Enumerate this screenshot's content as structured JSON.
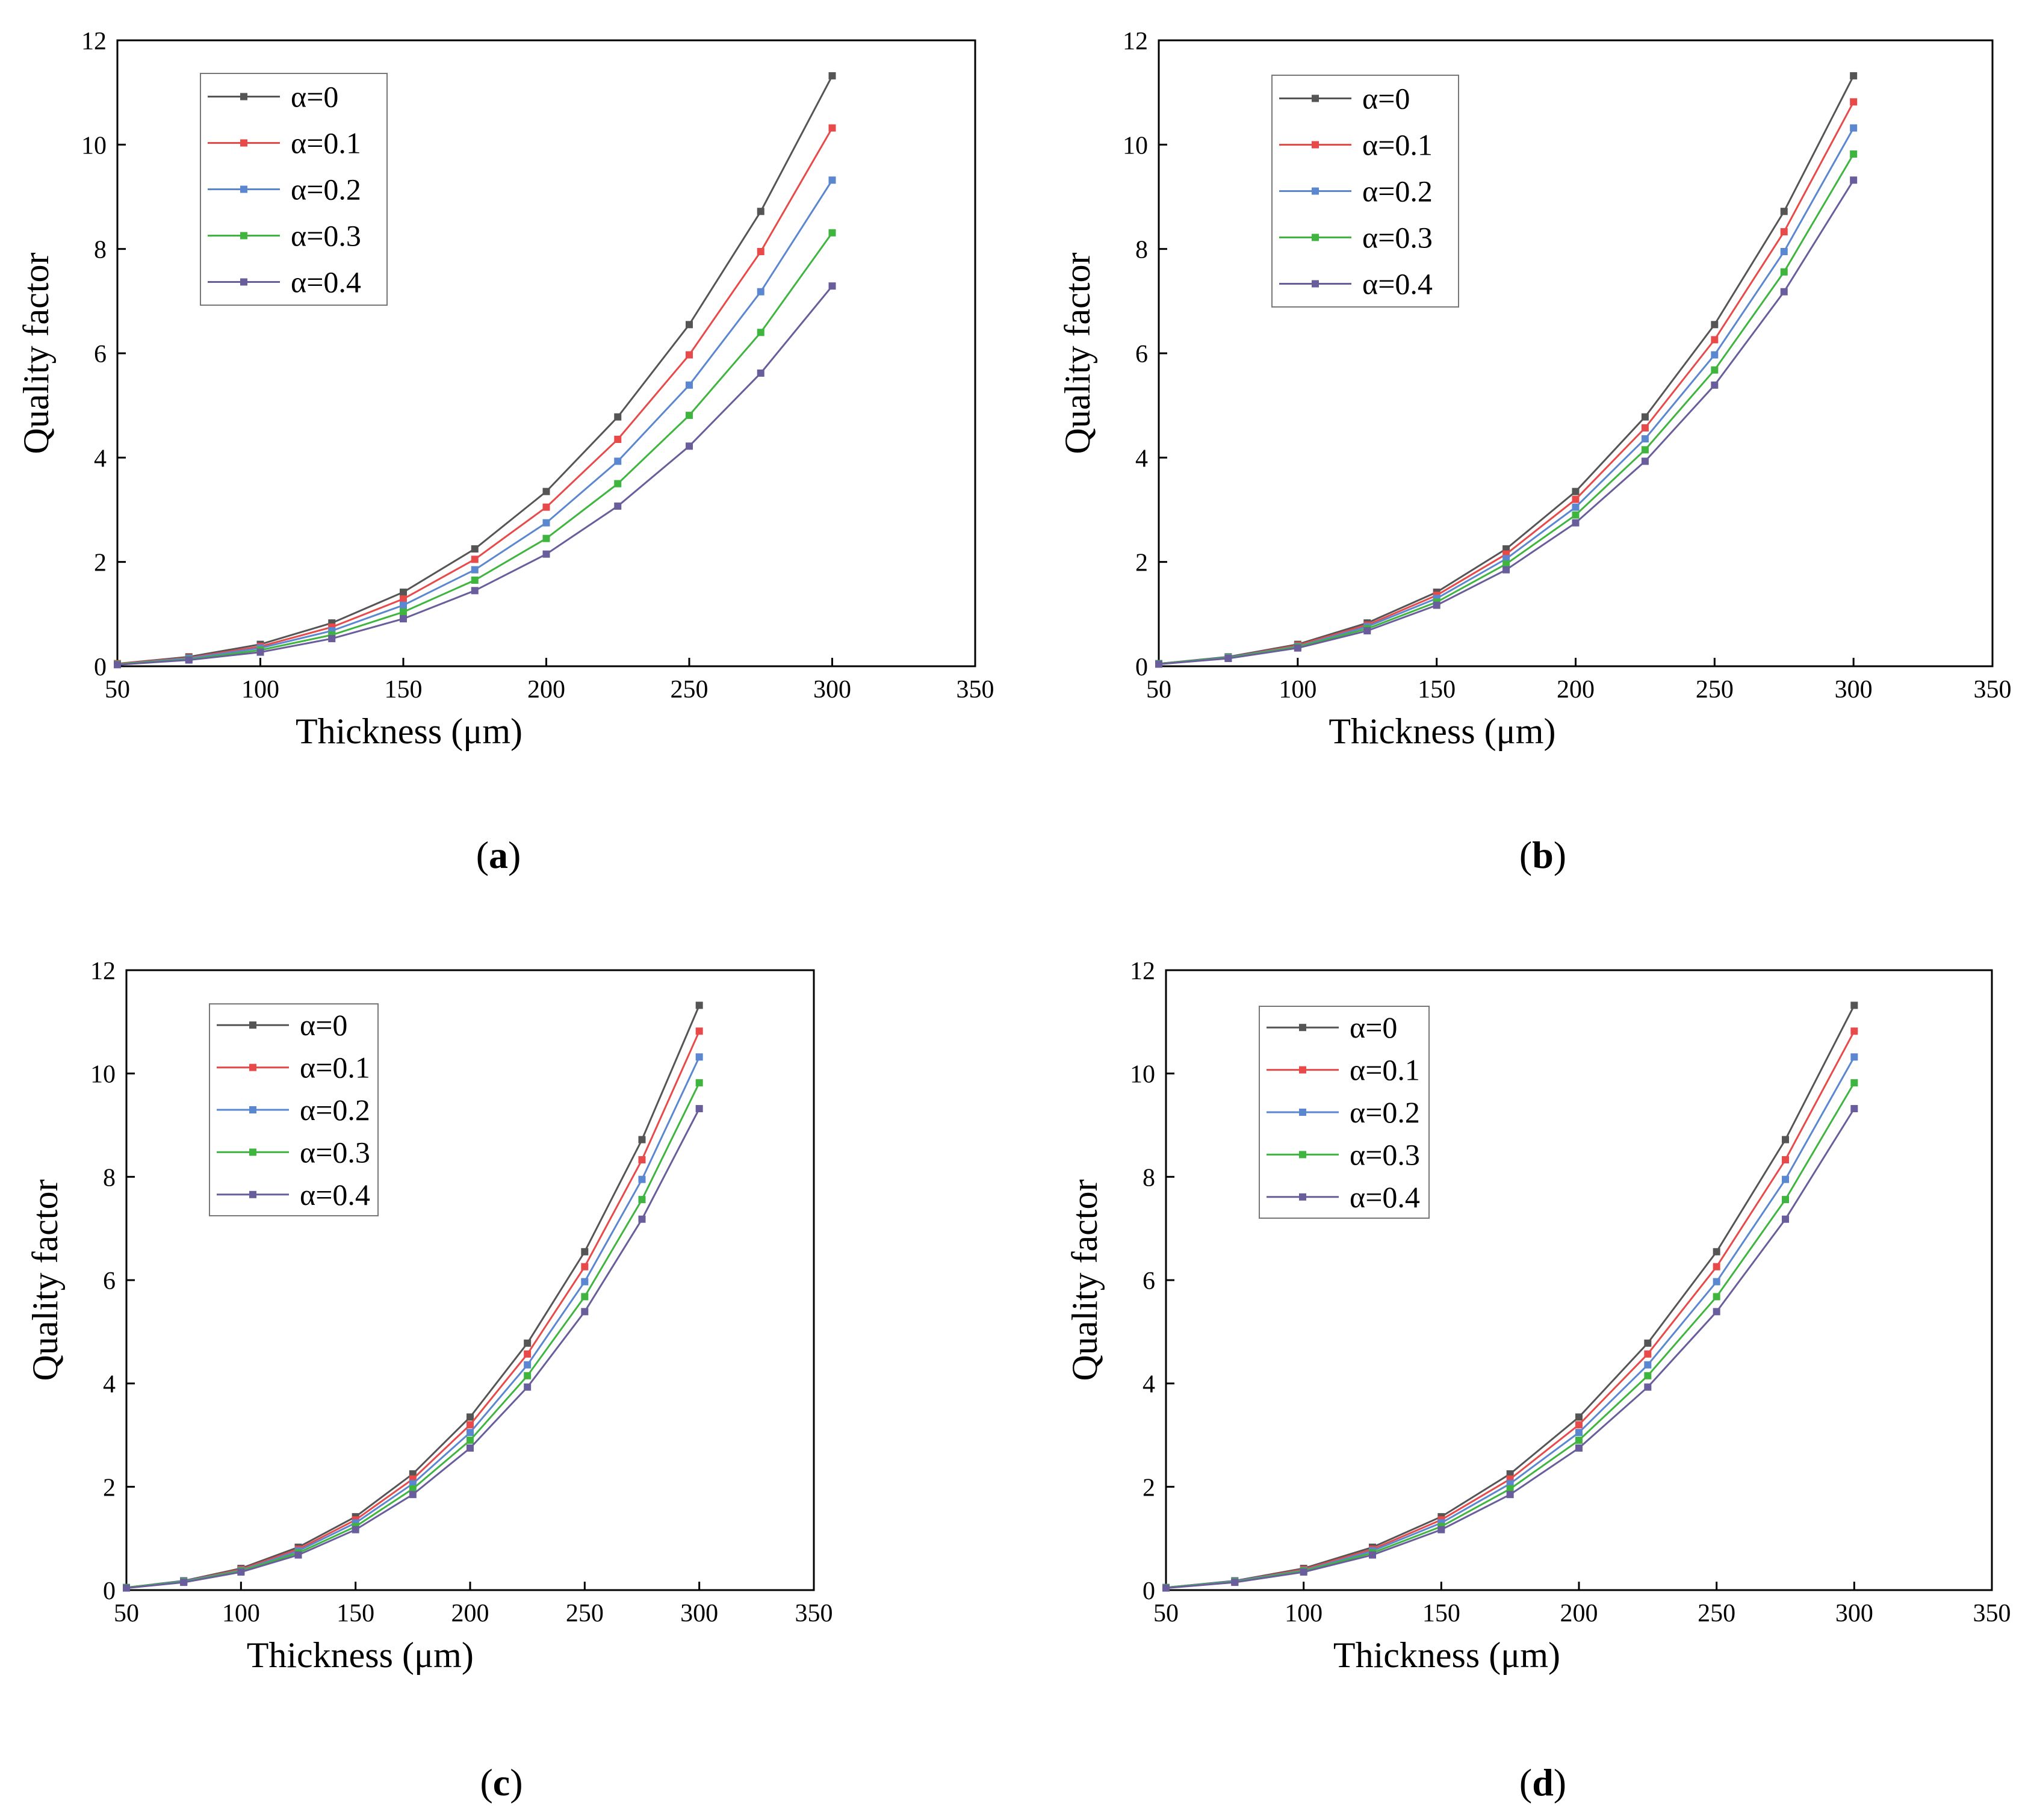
{
  "chart_data": [
    {
      "type": "line",
      "panel": "(a)",
      "caption_letter": "a",
      "xlabel": "Thickness (μm)",
      "ylabel": "Quality factor",
      "xlim": [
        50,
        350
      ],
      "ylim": [
        0,
        12
      ],
      "xticks": [
        50,
        100,
        150,
        200,
        250,
        300,
        350
      ],
      "yticks": [
        0,
        2,
        4,
        6,
        8,
        10,
        12
      ],
      "grid": false,
      "legend_position": "top-left",
      "x": [
        50,
        75,
        100,
        125,
        150,
        175,
        200,
        225,
        250,
        275,
        300
      ],
      "series": [
        {
          "name": "α=0",
          "color": "#555555",
          "values": [
            0.05,
            0.18,
            0.42,
            0.83,
            1.42,
            2.25,
            3.35,
            4.78,
            6.55,
            8.72,
            11.32
          ]
        },
        {
          "name": "α=0.1",
          "color": "#e84a4a",
          "values": [
            0.05,
            0.16,
            0.38,
            0.75,
            1.29,
            2.05,
            3.05,
            4.35,
            5.97,
            7.95,
            10.32
          ]
        },
        {
          "name": "α=0.2",
          "color": "#5b86d0",
          "values": [
            0.04,
            0.15,
            0.35,
            0.68,
            1.17,
            1.85,
            2.75,
            3.93,
            5.39,
            7.18,
            9.32
          ]
        },
        {
          "name": "α=0.3",
          "color": "#3fb53f",
          "values": [
            0.04,
            0.13,
            0.31,
            0.6,
            1.04,
            1.65,
            2.45,
            3.5,
            4.81,
            6.4,
            8.31
          ]
        },
        {
          "name": "α=0.4",
          "color": "#6a5d9c",
          "values": [
            0.03,
            0.12,
            0.27,
            0.53,
            0.91,
            1.45,
            2.15,
            3.07,
            4.22,
            5.62,
            7.29
          ]
        }
      ]
    },
    {
      "type": "line",
      "panel": "(b)",
      "caption_letter": "b",
      "xlabel": "Thickness (μm)",
      "ylabel": "Quality factor",
      "xlim": [
        50,
        350
      ],
      "ylim": [
        0,
        12
      ],
      "xticks": [
        50,
        100,
        150,
        200,
        250,
        300,
        350
      ],
      "yticks": [
        0,
        2,
        4,
        6,
        8,
        10,
        12
      ],
      "grid": false,
      "legend_position": "top-left",
      "x": [
        50,
        75,
        100,
        125,
        150,
        175,
        200,
        225,
        250,
        275,
        300
      ],
      "series": [
        {
          "name": "α=0",
          "color": "#555555",
          "values": [
            0.05,
            0.18,
            0.42,
            0.83,
            1.42,
            2.25,
            3.35,
            4.78,
            6.55,
            8.72,
            11.32
          ]
        },
        {
          "name": "α=0.1",
          "color": "#e84a4a",
          "values": [
            0.05,
            0.17,
            0.4,
            0.79,
            1.36,
            2.15,
            3.2,
            4.57,
            6.26,
            8.33,
            10.82
          ]
        },
        {
          "name": "α=0.2",
          "color": "#5b86d0",
          "values": [
            0.05,
            0.17,
            0.38,
            0.76,
            1.3,
            2.06,
            3.05,
            4.36,
            5.97,
            7.95,
            10.32
          ]
        },
        {
          "name": "α=0.3",
          "color": "#3fb53f",
          "values": [
            0.05,
            0.16,
            0.37,
            0.72,
            1.23,
            1.96,
            2.9,
            4.15,
            5.68,
            7.56,
            9.82
          ]
        },
        {
          "name": "α=0.4",
          "color": "#6a5d9c",
          "values": [
            0.04,
            0.15,
            0.35,
            0.68,
            1.17,
            1.85,
            2.75,
            3.93,
            5.39,
            7.18,
            9.32
          ]
        }
      ]
    },
    {
      "type": "line",
      "panel": "(c)",
      "caption_letter": "c",
      "xlabel": "Thickness (μm)",
      "ylabel": "Quality factor",
      "xlim": [
        50,
        350
      ],
      "ylim": [
        0,
        12
      ],
      "xticks": [
        50,
        100,
        150,
        200,
        250,
        300,
        350
      ],
      "yticks": [
        0,
        2,
        4,
        6,
        8,
        10,
        12
      ],
      "grid": false,
      "legend_position": "top-left",
      "x": [
        50,
        75,
        100,
        125,
        150,
        175,
        200,
        225,
        250,
        275,
        300
      ],
      "series": [
        {
          "name": "α=0",
          "color": "#555555",
          "values": [
            0.05,
            0.18,
            0.42,
            0.83,
            1.42,
            2.25,
            3.35,
            4.78,
            6.55,
            8.72,
            11.32
          ]
        },
        {
          "name": "α=0.1",
          "color": "#e84a4a",
          "values": [
            0.05,
            0.17,
            0.4,
            0.79,
            1.36,
            2.15,
            3.2,
            4.57,
            6.26,
            8.33,
            10.82
          ]
        },
        {
          "name": "α=0.2",
          "color": "#5b86d0",
          "values": [
            0.05,
            0.17,
            0.38,
            0.76,
            1.3,
            2.06,
            3.05,
            4.36,
            5.97,
            7.95,
            10.32
          ]
        },
        {
          "name": "α=0.3",
          "color": "#3fb53f",
          "values": [
            0.05,
            0.16,
            0.37,
            0.72,
            1.23,
            1.96,
            2.9,
            4.15,
            5.68,
            7.56,
            9.82
          ]
        },
        {
          "name": "α=0.4",
          "color": "#6a5d9c",
          "values": [
            0.04,
            0.15,
            0.35,
            0.68,
            1.17,
            1.85,
            2.75,
            3.93,
            5.39,
            7.18,
            9.32
          ]
        }
      ]
    },
    {
      "type": "line",
      "panel": "(d)",
      "caption_letter": "d",
      "xlabel": "Thickness (μm)",
      "ylabel": "Quality factor",
      "xlim": [
        50,
        350
      ],
      "ylim": [
        0,
        12
      ],
      "xticks": [
        50,
        100,
        150,
        200,
        250,
        300,
        350
      ],
      "yticks": [
        0,
        2,
        4,
        6,
        8,
        10,
        12
      ],
      "grid": false,
      "legend_position": "top-left",
      "x": [
        50,
        75,
        100,
        125,
        150,
        175,
        200,
        225,
        250,
        275,
        300
      ],
      "series": [
        {
          "name": "α=0",
          "color": "#555555",
          "values": [
            0.05,
            0.18,
            0.42,
            0.83,
            1.42,
            2.25,
            3.35,
            4.78,
            6.55,
            8.72,
            11.32
          ]
        },
        {
          "name": "α=0.1",
          "color": "#e84a4a",
          "values": [
            0.05,
            0.17,
            0.4,
            0.79,
            1.36,
            2.15,
            3.2,
            4.57,
            6.26,
            8.33,
            10.82
          ]
        },
        {
          "name": "α=0.2",
          "color": "#5b86d0",
          "values": [
            0.05,
            0.17,
            0.38,
            0.76,
            1.3,
            2.06,
            3.05,
            4.36,
            5.97,
            7.95,
            10.32
          ]
        },
        {
          "name": "α=0.3",
          "color": "#3fb53f",
          "values": [
            0.05,
            0.16,
            0.37,
            0.72,
            1.23,
            1.96,
            2.9,
            4.15,
            5.68,
            7.56,
            9.82
          ]
        },
        {
          "name": "α=0.4",
          "color": "#6a5d9c",
          "values": [
            0.04,
            0.15,
            0.35,
            0.68,
            1.17,
            1.85,
            2.75,
            3.93,
            5.39,
            7.18,
            9.32
          ]
        }
      ]
    }
  ]
}
